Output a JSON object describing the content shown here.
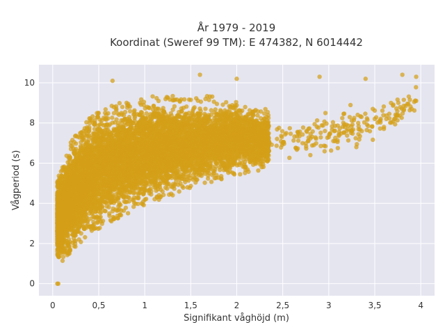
{
  "chart_data": {
    "type": "scatter",
    "title_line1": "År 1979 - 2019",
    "title_line2": "Koordinat (Sweref 99 TM): E 474382, N 6014442",
    "xlabel": "Signifikant våghöjd (m)",
    "ylabel": "Vågperiod (s)",
    "xlim": [
      -0.15,
      4.15
    ],
    "ylim": [
      -0.6,
      10.9
    ],
    "x_ticks": [
      0,
      0.5,
      1,
      1.5,
      2,
      2.5,
      3,
      3.5,
      4
    ],
    "x_tick_labels": [
      "0",
      "0,5",
      "1",
      "1,5",
      "2",
      "2,5",
      "3",
      "3,5",
      "4"
    ],
    "y_ticks": [
      0,
      2,
      4,
      6,
      8,
      10
    ],
    "y_tick_labels": [
      "0",
      "2",
      "4",
      "6",
      "8",
      "10"
    ],
    "grid": true,
    "colors": {
      "marker": "#D4A017",
      "plot_bg": "#E5E5F0",
      "grid": "#ffffff"
    },
    "density_envelope": {
      "x": [
        0.05,
        0.1,
        0.15,
        0.2,
        0.3,
        0.4,
        0.5,
        0.6,
        0.8,
        1.0,
        1.2,
        1.5,
        1.8,
        2.0,
        2.2,
        2.5,
        2.8,
        3.0,
        3.3,
        3.6,
        3.9
      ],
      "y_upper": [
        5.0,
        5.6,
        6.2,
        6.8,
        7.5,
        8.0,
        8.3,
        8.6,
        8.8,
        9.0,
        9.1,
        9.1,
        9.0,
        8.8,
        8.6,
        8.4,
        8.4,
        8.5,
        8.8,
        9.2,
        9.6
      ],
      "y_lower": [
        1.5,
        1.3,
        1.5,
        1.8,
        2.2,
        2.6,
        2.9,
        3.2,
        3.6,
        4.0,
        4.4,
        4.9,
        5.3,
        5.6,
        5.8,
        6.0,
        6.2,
        6.4,
        6.9,
        7.5,
        8.2
      ]
    },
    "point_count_estimate": 9000,
    "notable_points": [
      {
        "x": 0.05,
        "y": 0.0
      },
      {
        "x": 0.06,
        "y": 0.0
      },
      {
        "x": 0.65,
        "y": 10.1
      },
      {
        "x": 1.6,
        "y": 10.4
      },
      {
        "x": 2.0,
        "y": 10.2
      },
      {
        "x": 2.9,
        "y": 10.3
      },
      {
        "x": 3.4,
        "y": 10.2
      },
      {
        "x": 3.8,
        "y": 10.4
      },
      {
        "x": 3.95,
        "y": 10.3
      },
      {
        "x": 3.95,
        "y": 9.1
      },
      {
        "x": 3.9,
        "y": 8.7
      },
      {
        "x": 3.5,
        "y": 8.2
      },
      {
        "x": 3.6,
        "y": 7.8
      },
      {
        "x": 3.0,
        "y": 7.3
      },
      {
        "x": 3.3,
        "y": 6.8
      },
      {
        "x": 2.8,
        "y": 6.4
      },
      {
        "x": 3.05,
        "y": 7.1
      }
    ]
  }
}
